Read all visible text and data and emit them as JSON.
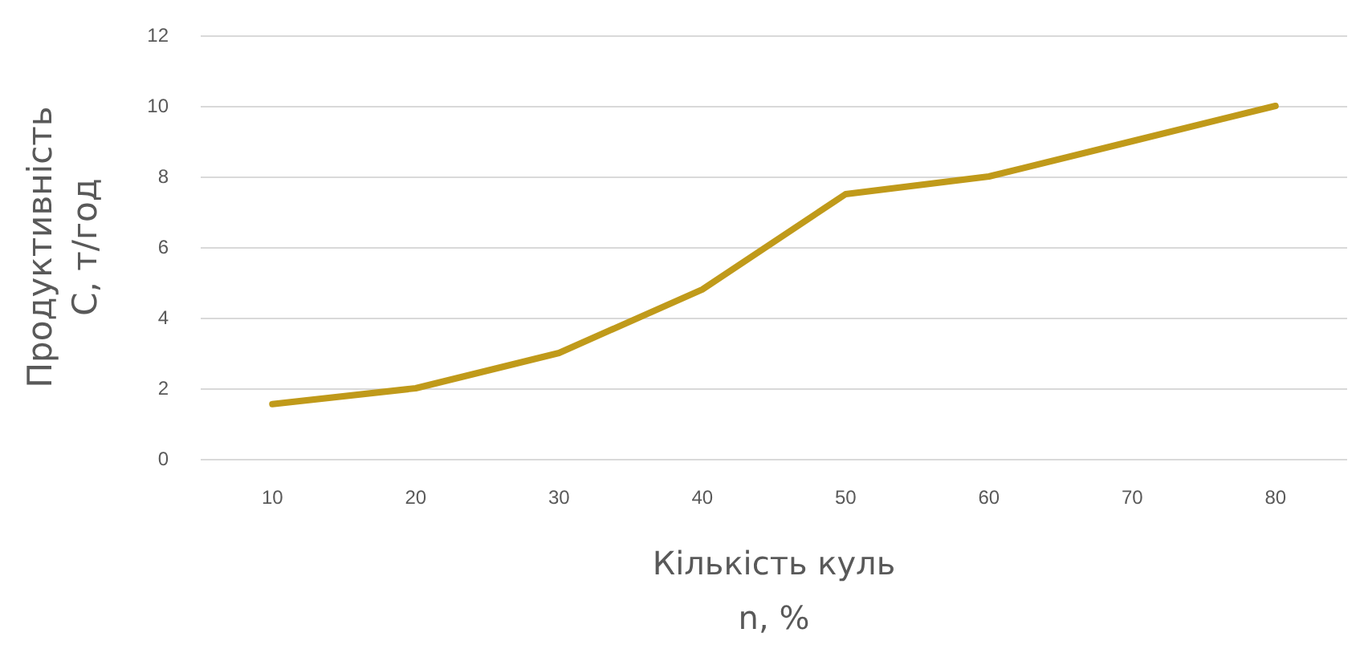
{
  "chart_data": {
    "type": "line",
    "xlabel": "Кількість куль\nn, %",
    "ylabel": "Продуктивність\nC, т/год",
    "categories": [
      "10",
      "20",
      "30",
      "40",
      "50",
      "60",
      "70",
      "80"
    ],
    "series": [
      {
        "color": "#c09a1a",
        "values": [
          1.55,
          2,
          3,
          4.8,
          7.5,
          8,
          9,
          10
        ]
      }
    ],
    "ylim": [
      0,
      12
    ],
    "yticks": [
      0,
      2,
      4,
      6,
      8,
      10,
      12
    ],
    "grid": "y",
    "marker": "none",
    "line_style": "solid"
  }
}
